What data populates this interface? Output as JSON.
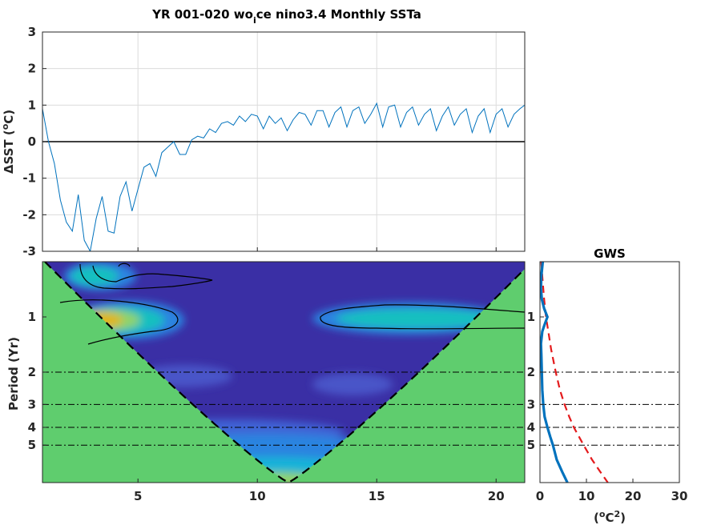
{
  "chart_data": [
    {
      "type": "line",
      "title": "YR 001-020 wo",
      "title_sub": "i",
      "title_rest": "ce nino3.4 Monthly SSTa",
      "ylabel_pre": "ΔSST (",
      "ylabel_sup": "o",
      "ylabel_post": "C)",
      "xlim": [
        1,
        21.2
      ],
      "ylim": [
        -3,
        3
      ],
      "yticks": [
        3,
        2,
        1,
        0,
        -1,
        -2,
        -3
      ],
      "xticks": [
        5,
        10,
        15,
        20
      ],
      "grid": true,
      "zero_line": true,
      "color": "#0072bd",
      "x": [
        1.0,
        1.25,
        1.5,
        1.75,
        2.0,
        2.25,
        2.5,
        2.75,
        3.0,
        3.25,
        3.5,
        3.75,
        4.0,
        4.25,
        4.5,
        4.75,
        5.0,
        5.25,
        5.5,
        5.75,
        6.0,
        6.25,
        6.5,
        6.75,
        7.0,
        7.25,
        7.5,
        7.75,
        8.0,
        8.25,
        8.5,
        8.75,
        9.0,
        9.25,
        9.5,
        9.75,
        10.0,
        10.25,
        10.5,
        10.75,
        11.0,
        11.25,
        11.5,
        11.75,
        12.0,
        12.25,
        12.5,
        12.75,
        13.0,
        13.25,
        13.5,
        13.75,
        14.0,
        14.25,
        14.5,
        14.75,
        15.0,
        15.25,
        15.5,
        15.75,
        16.0,
        16.25,
        16.5,
        16.75,
        17.0,
        17.25,
        17.5,
        17.75,
        18.0,
        18.25,
        18.5,
        18.75,
        19.0,
        19.25,
        19.5,
        19.75,
        20.0,
        20.25,
        20.5,
        20.75,
        21.0,
        21.2
      ],
      "y": [
        0.9,
        0.0,
        -0.6,
        -1.6,
        -2.2,
        -2.45,
        -1.45,
        -2.7,
        -3.0,
        -2.1,
        -1.5,
        -2.45,
        -2.5,
        -1.5,
        -1.1,
        -1.9,
        -1.3,
        -0.7,
        -0.6,
        -0.95,
        -0.3,
        -0.15,
        0.0,
        -0.35,
        -0.35,
        0.05,
        0.15,
        0.1,
        0.35,
        0.25,
        0.5,
        0.55,
        0.45,
        0.7,
        0.55,
        0.75,
        0.7,
        0.35,
        0.7,
        0.5,
        0.65,
        0.3,
        0.6,
        0.8,
        0.75,
        0.45,
        0.85,
        0.85,
        0.4,
        0.8,
        0.95,
        0.4,
        0.85,
        0.95,
        0.5,
        0.75,
        1.05,
        0.4,
        0.95,
        1.0,
        0.4,
        0.8,
        0.95,
        0.45,
        0.75,
        0.9,
        0.3,
        0.7,
        0.95,
        0.45,
        0.75,
        0.9,
        0.25,
        0.7,
        0.9,
        0.25,
        0.75,
        0.9,
        0.4,
        0.75,
        0.9,
        1.0
      ]
    },
    {
      "type": "heatmap",
      "ylabel": "Period (Yr)",
      "xlim": [
        1,
        21.2
      ],
      "ylim": [
        0.5,
        8
      ],
      "ylog": true,
      "xticks": [
        5,
        10,
        15,
        20
      ],
      "yticks": [
        "1",
        "2",
        "3",
        "4",
        "5"
      ],
      "ytick_values": [
        1,
        2,
        3,
        4,
        5
      ],
      "dashdot_periods": [
        2,
        3,
        4,
        5
      ],
      "colors": {
        "low": "#3a2fa5",
        "cone": "#5fcd6e",
        "mid": "#2a84e0",
        "high": "#19c0c0",
        "peak": "#e0b51f"
      }
    },
    {
      "type": "line",
      "title": "GWS",
      "xlabel_pre": "(",
      "xlabel_sup1": "o",
      "xlabel_mid": "C",
      "xlabel_sup2": "2",
      "xlabel_post": ")",
      "xlim": [
        0,
        30
      ],
      "xticks": [
        0,
        10,
        20,
        30
      ],
      "ytick_labels": [
        "1",
        "2",
        "3",
        "4",
        "5"
      ],
      "series": [
        {
          "color": "#0072bd",
          "period": [
            0.5,
            0.6,
            0.7,
            0.8,
            0.9,
            1.0,
            1.1,
            1.2,
            1.4,
            1.6,
            2.0,
            2.5,
            3.0,
            3.5,
            4.0,
            4.5,
            5.0,
            6.0,
            7.0,
            8.0
          ],
          "power": [
            0.6,
            0.3,
            0.2,
            0.4,
            0.9,
            1.6,
            1.0,
            0.5,
            0.2,
            0.3,
            0.4,
            0.5,
            0.7,
            1.0,
            1.6,
            2.2,
            2.8,
            3.6,
            4.8,
            5.9
          ]
        },
        {
          "color": "#e41a1c",
          "dashed": true,
          "period": [
            0.5,
            0.6,
            0.7,
            0.8,
            1.0,
            1.2,
            1.5,
            2.0,
            2.5,
            3.0,
            3.5,
            4.0,
            5.0,
            6.0,
            7.0,
            8.0
          ],
          "power": [
            0.3,
            0.5,
            0.7,
            0.9,
            1.3,
            1.8,
            2.4,
            3.4,
            4.3,
            5.3,
            6.3,
            7.3,
            9.4,
            11.2,
            13.0,
            14.6
          ]
        }
      ]
    }
  ]
}
